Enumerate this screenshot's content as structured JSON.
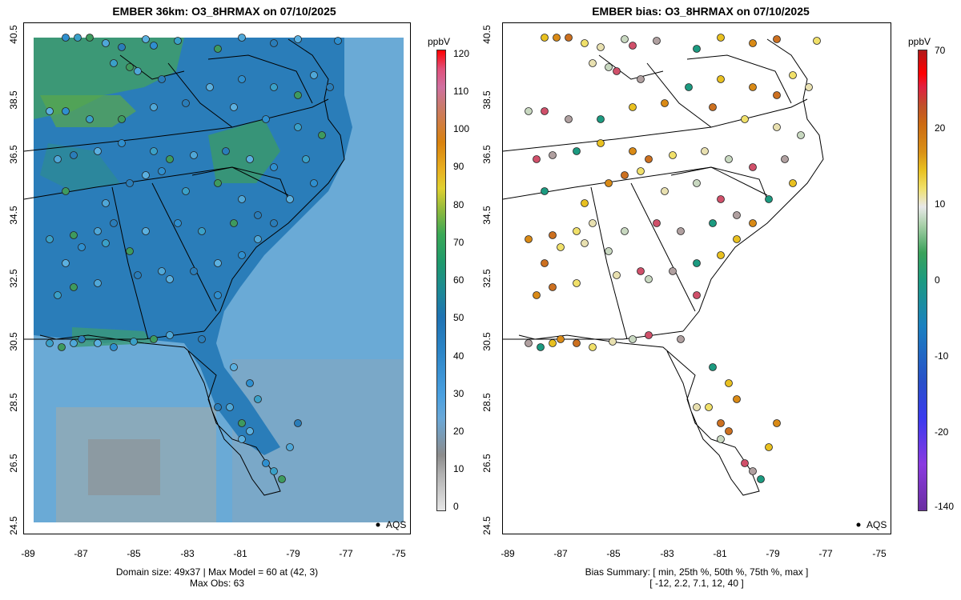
{
  "left_panel": {
    "title": "EMBER 36km: O3_8HRMAX on 07/10/2025",
    "y_ticks": [
      "40.5",
      "38.5",
      "36.5",
      "34.5",
      "32.5",
      "30.5",
      "28.5",
      "26.5",
      "24.5"
    ],
    "x_ticks": [
      "-89",
      "-87",
      "-85",
      "-83",
      "-81",
      "-79",
      "-77",
      "-75"
    ],
    "colorbar_unit": "ppbV",
    "colorbar_ticks": [
      "120",
      "110",
      "100",
      "90",
      "80",
      "70",
      "60",
      "50",
      "40",
      "30",
      "20",
      "10",
      "0"
    ],
    "legend_label": "AQS",
    "footer_line1": "Domain size: 49x37 | Max Model = 60 at (42, 3)",
    "footer_line2": "Max Obs: 63"
  },
  "right_panel": {
    "title": "EMBER bias: O3_8HRMAX on 07/10/2025",
    "y_ticks": [
      "40.5",
      "38.5",
      "36.5",
      "34.5",
      "32.5",
      "30.5",
      "28.5",
      "26.5",
      "24.5"
    ],
    "x_ticks": [
      "-89",
      "-87",
      "-85",
      "-83",
      "-81",
      "-79",
      "-77",
      "-75"
    ],
    "colorbar_unit": "ppbV",
    "colorbar_ticks": [
      "70",
      "20",
      "10",
      "0",
      "-10",
      "-20",
      "-140"
    ],
    "legend_label": "AQS",
    "footer_line1": "Bias Summary: [ min, 25th %, 50th %, 75th %, max ]",
    "footer_line2": "[ -12,   2.2,   7.1,   12,   40 ]"
  },
  "colors": {
    "ocean_model": "#5f9fcc",
    "land_model": "#2b7fb8",
    "high_ozone": "#3a9e5e",
    "coast": "#000000"
  }
}
